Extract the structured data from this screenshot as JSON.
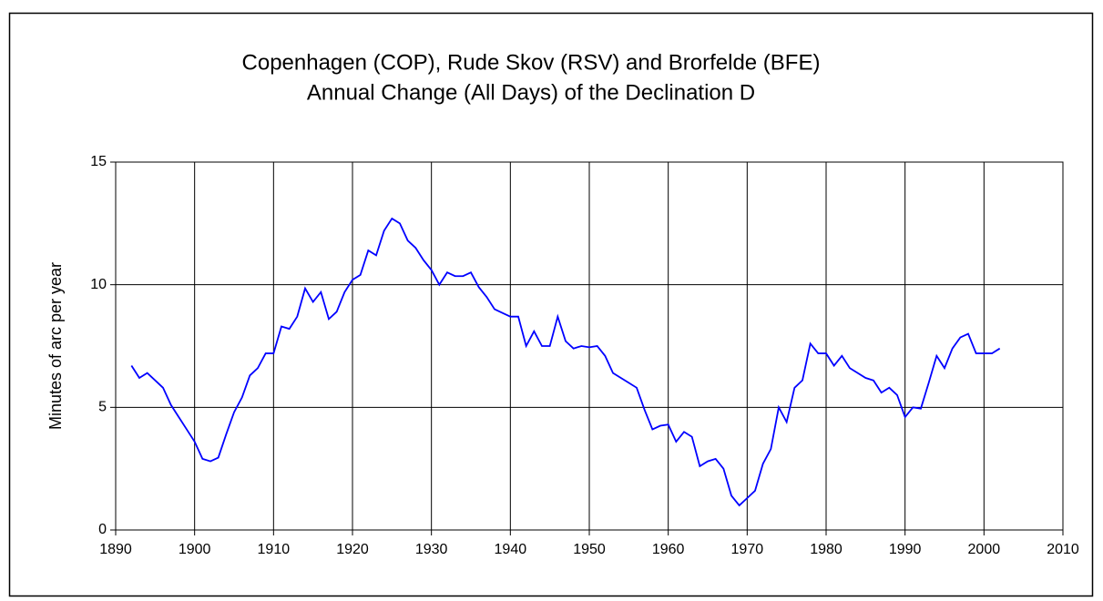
{
  "chart_data": {
    "type": "line",
    "title": "Copenhagen (COP), Rude Skov (RSV) and Brorfelde (BFE)",
    "subtitle": "Annual Change (All Days)  of the Declination D",
    "ylabel": "Minutes of arc per year",
    "x": [
      1892,
      1893,
      1894,
      1895,
      1896,
      1897,
      1898,
      1899,
      1900,
      1901,
      1902,
      1903,
      1904,
      1905,
      1906,
      1907,
      1908,
      1909,
      1910,
      1911,
      1912,
      1913,
      1914,
      1915,
      1916,
      1917,
      1918,
      1919,
      1920,
      1921,
      1922,
      1923,
      1924,
      1925,
      1926,
      1927,
      1928,
      1929,
      1930,
      1931,
      1932,
      1933,
      1934,
      1935,
      1936,
      1937,
      1938,
      1939,
      1940,
      1941,
      1942,
      1943,
      1944,
      1945,
      1946,
      1947,
      1948,
      1949,
      1950,
      1951,
      1952,
      1953,
      1954,
      1955,
      1956,
      1957,
      1958,
      1959,
      1960,
      1961,
      1962,
      1963,
      1964,
      1965,
      1966,
      1967,
      1968,
      1969,
      1970,
      1971,
      1972,
      1973,
      1974,
      1975,
      1976,
      1977,
      1978,
      1979,
      1980,
      1981,
      1982,
      1983,
      1984,
      1985,
      1986,
      1987,
      1988,
      1989,
      1990,
      1991,
      1992,
      1993,
      1994,
      1995,
      1996,
      1997,
      1998,
      1999,
      2000,
      2001,
      2002
    ],
    "series": [
      {
        "name": "D",
        "color": "#0000ff",
        "values": [
          6.7,
          6.2,
          6.4,
          6.1,
          5.8,
          5.1,
          4.6,
          4.1,
          3.6,
          2.9,
          2.8,
          2.95,
          3.9,
          4.8,
          5.4,
          6.3,
          6.6,
          7.2,
          7.2,
          8.3,
          8.2,
          8.7,
          9.85,
          9.3,
          9.7,
          8.6,
          8.9,
          9.7,
          10.2,
          10.4,
          11.4,
          11.2,
          12.2,
          12.7,
          12.5,
          11.8,
          11.5,
          11.0,
          10.6,
          10.0,
          10.5,
          10.35,
          10.35,
          10.5,
          9.9,
          9.5,
          9.0,
          8.85,
          8.7,
          8.7,
          7.5,
          8.1,
          7.5,
          7.5,
          8.7,
          7.7,
          7.4,
          7.5,
          7.45,
          7.5,
          7.1,
          6.4,
          6.2,
          6.0,
          5.8,
          4.9,
          4.1,
          4.25,
          4.3,
          3.6,
          4.0,
          3.8,
          2.6,
          2.8,
          2.9,
          2.5,
          1.4,
          1.0,
          1.3,
          1.6,
          2.7,
          3.3,
          5.0,
          4.4,
          5.8,
          6.1,
          7.6,
          7.2,
          7.2,
          6.7,
          7.1,
          6.6,
          6.4,
          6.2,
          6.1,
          5.6,
          5.8,
          5.5,
          4.6,
          5.0,
          4.95,
          6.0,
          7.1,
          6.6,
          7.4,
          7.85,
          8.0,
          7.2,
          7.2,
          7.2,
          7.4
        ]
      }
    ],
    "xlim": [
      1890,
      2010
    ],
    "xticks": [
      1890,
      1900,
      1910,
      1920,
      1930,
      1940,
      1950,
      1960,
      1970,
      1980,
      1990,
      2000,
      2010
    ],
    "ylim": [
      0,
      15
    ],
    "yticks": [
      0,
      5,
      10,
      15
    ],
    "grid": true
  }
}
